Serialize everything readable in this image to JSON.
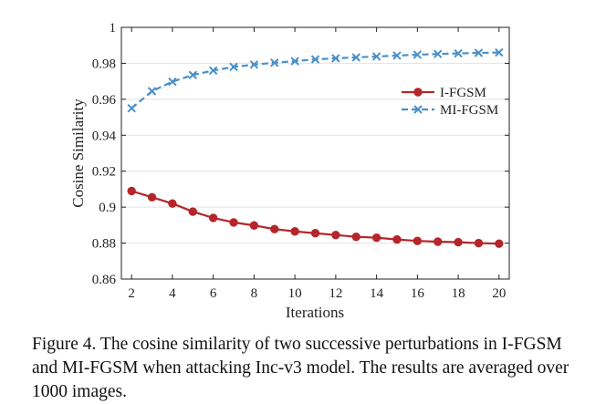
{
  "chart_data": {
    "type": "line",
    "xlabel": "Iterations",
    "ylabel": "Cosine Similarity",
    "xlim": [
      1.5,
      20.5
    ],
    "ylim": [
      0.86,
      1.0
    ],
    "xticks": [
      2,
      4,
      6,
      8,
      10,
      12,
      14,
      16,
      18,
      20
    ],
    "yticks": [
      0.86,
      0.88,
      0.9,
      0.92,
      0.94,
      0.96,
      0.98,
      1.0
    ],
    "ytick_labels": [
      "0.86",
      "0.88",
      "0.9",
      "0.92",
      "0.94",
      "0.96",
      "0.98",
      "1"
    ],
    "grid": "horizontal",
    "legend_position": "upper-right",
    "x": [
      2,
      3,
      4,
      5,
      6,
      7,
      8,
      9,
      10,
      11,
      12,
      13,
      14,
      15,
      16,
      17,
      18,
      19,
      20
    ],
    "series": [
      {
        "name": "I-FGSM",
        "color": "#b5262a",
        "marker": "circle",
        "line": "solid",
        "values": [
          0.909,
          0.9055,
          0.902,
          0.8975,
          0.894,
          0.8915,
          0.8898,
          0.8878,
          0.8865,
          0.8855,
          0.8845,
          0.8835,
          0.883,
          0.882,
          0.8812,
          0.8808,
          0.8805,
          0.88,
          0.8797
        ]
      },
      {
        "name": "MI-FGSM",
        "color": "#4a90c8",
        "marker": "x",
        "line": "dashed",
        "values": [
          0.955,
          0.9645,
          0.9698,
          0.9735,
          0.976,
          0.978,
          0.9793,
          0.9803,
          0.9812,
          0.9822,
          0.9828,
          0.9833,
          0.9838,
          0.9843,
          0.9848,
          0.9852,
          0.9855,
          0.9858,
          0.986
        ]
      }
    ]
  },
  "caption": "Figure 4. The cosine similarity of two successive perturbations in I-FGSM and MI-FGSM when attacking Inc-v3 model. The results are averaged over 1000 images."
}
